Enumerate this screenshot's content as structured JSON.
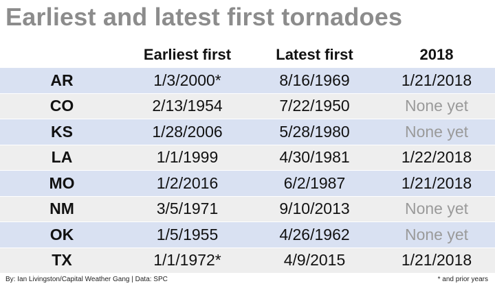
{
  "title": "Earliest and latest first tornadoes",
  "table": {
    "headers": [
      "",
      "Earliest first",
      "Latest first",
      "2018"
    ],
    "rows": [
      {
        "state": "AR",
        "earliest": "1/3/2000*",
        "latest": "8/16/1969",
        "y2018": "1/21/2018"
      },
      {
        "state": "CO",
        "earliest": "2/13/1954",
        "latest": "7/22/1950",
        "y2018": "None yet"
      },
      {
        "state": "KS",
        "earliest": "1/28/2006",
        "latest": "5/28/1980",
        "y2018": "None yet"
      },
      {
        "state": "LA",
        "earliest": "1/1/1999",
        "latest": "4/30/1981",
        "y2018": "1/22/2018"
      },
      {
        "state": "MO",
        "earliest": "1/2/2016",
        "latest": "6/2/1987",
        "y2018": "1/21/2018"
      },
      {
        "state": "NM",
        "earliest": "3/5/1971",
        "latest": "9/10/2013",
        "y2018": "None yet"
      },
      {
        "state": "OK",
        "earliest": "1/5/1955",
        "latest": "4/26/1962",
        "y2018": "None yet"
      },
      {
        "state": "TX",
        "earliest": "1/1/1972*",
        "latest": "4/9/2015",
        "y2018": "1/21/2018"
      }
    ]
  },
  "credit": "By: Ian Livingston/Capital Weather Gang | Data: SPC",
  "footnote": "* and prior years",
  "colors": {
    "title": "#8c8c8c",
    "row_band_blue": "#d9e1f2",
    "row_band_gray": "#eeeeee",
    "none_yet_text": "#9a9a9a"
  }
}
